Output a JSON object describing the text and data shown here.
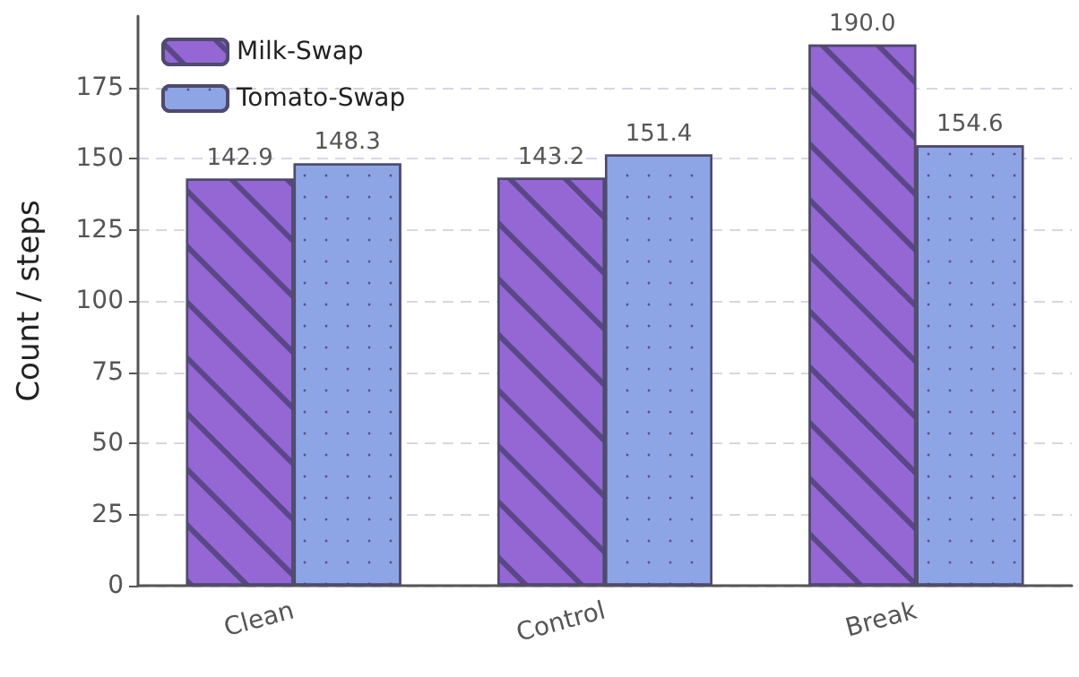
{
  "chart_data": {
    "type": "bar",
    "ylabel": "Count / steps",
    "categories": [
      "Clean",
      "Control",
      "Break"
    ],
    "series": [
      {
        "name": "Milk-Swap",
        "color": "#9467d4",
        "values": [
          142.9,
          143.2,
          190.0
        ],
        "value_labels": [
          "142.9",
          "143.2",
          "190.0"
        ]
      },
      {
        "name": "Tomato-Swap",
        "color": "#8ea5e5",
        "values": [
          148.3,
          151.4,
          154.6
        ],
        "value_labels": [
          "148.3",
          "151.4",
          "154.6"
        ]
      }
    ],
    "ylim": [
      0,
      200
    ],
    "yticks": [
      0,
      25,
      50,
      75,
      100,
      125,
      150,
      175
    ],
    "grid": "y",
    "legend": "top left"
  }
}
